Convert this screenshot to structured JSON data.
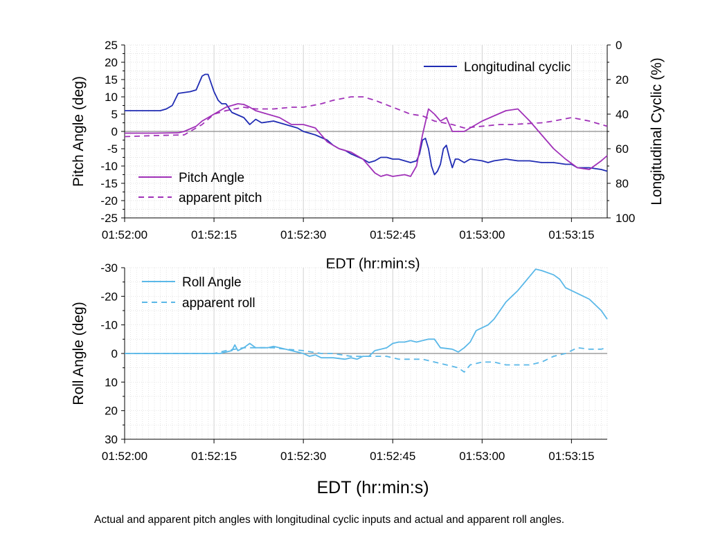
{
  "caption": "Actual and apparent pitch angles with longitudinal cyclic inputs and actual and apparent roll angles.",
  "chart_data": [
    {
      "type": "line",
      "xlabel": "EDT (hr:min:s)",
      "ylabel": "Pitch Angle (deg)",
      "y2label": "Longitudinal Cyclic (%)",
      "x_tick_labels": [
        "01:52:00",
        "01:52:15",
        "01:52:30",
        "01:52:45",
        "01:53:00",
        "01:53:15"
      ],
      "x_tick_seconds": [
        0,
        15,
        30,
        45,
        60,
        75
      ],
      "xlim_seconds": [
        0,
        81
      ],
      "ylim": [
        -25,
        25
      ],
      "y_ticks": [
        25,
        20,
        15,
        10,
        5,
        0,
        -5,
        -10,
        -15,
        -20,
        -25
      ],
      "y2lim": [
        0,
        100
      ],
      "y2_inverted": true,
      "y2_ticks": [
        0,
        20,
        40,
        60,
        80,
        100
      ],
      "grid": true,
      "series": [
        {
          "name": "Longitudinal cyclic",
          "axis": "right",
          "color": "#1f2bb3",
          "style": "solid",
          "legend_position": "top-right",
          "x": [
            0,
            3,
            6,
            7,
            8,
            9,
            11,
            12,
            13,
            13.5,
            14,
            15,
            15.7,
            16.3,
            17,
            18,
            20,
            21,
            22,
            23,
            25,
            27,
            29,
            30,
            31,
            32,
            34,
            35,
            36,
            37,
            38,
            40,
            41,
            42,
            43,
            44,
            45,
            46,
            47,
            48,
            49,
            49.5,
            50,
            50.5,
            51,
            51.5,
            52,
            52.5,
            53,
            53.5,
            54,
            54.5,
            55,
            55.5,
            56,
            57,
            58,
            60,
            61,
            62,
            64,
            66,
            68,
            70,
            72,
            74,
            75,
            76,
            78,
            80,
            81
          ],
          "y": [
            38,
            38,
            38,
            37,
            35,
            28,
            27,
            26,
            18,
            17,
            17,
            27,
            32,
            34,
            34,
            39,
            42,
            46,
            43,
            45,
            44,
            46,
            48,
            50,
            51,
            52,
            55,
            58,
            60,
            61,
            63,
            66,
            68,
            67,
            65,
            65,
            66,
            66,
            67,
            68,
            67,
            63,
            55,
            54,
            60,
            70,
            75,
            73,
            69,
            60,
            58,
            65,
            71,
            66,
            66,
            68,
            66,
            67,
            68,
            67,
            66,
            67,
            67,
            68,
            68,
            69,
            69,
            71,
            71,
            72,
            73
          ]
        },
        {
          "name": "Pitch Angle",
          "axis": "left",
          "color": "#a030b8",
          "style": "solid",
          "legend_position": "bottom-left",
          "x": [
            0,
            5,
            9,
            10,
            12,
            13,
            15,
            17,
            18,
            19,
            20,
            21,
            22,
            24,
            26,
            28,
            30,
            32,
            34,
            36,
            38,
            40,
            41,
            42,
            43,
            44,
            45,
            47,
            48,
            49,
            50,
            51,
            52,
            53,
            54,
            55,
            56,
            57,
            58,
            60,
            62,
            64,
            66,
            68,
            70,
            72,
            74,
            76,
            78,
            80,
            81
          ],
          "y": [
            -0.5,
            -0.5,
            -0.4,
            0,
            1.5,
            3,
            5,
            7,
            7.5,
            8,
            7.8,
            7,
            6,
            5,
            4,
            2,
            2,
            1,
            -3,
            -5,
            -6,
            -8,
            -10,
            -12,
            -13,
            -12.5,
            -13,
            -12.5,
            -13,
            -10,
            -1,
            6.5,
            5,
            3,
            4,
            0,
            0,
            0,
            1,
            3,
            4.5,
            6,
            6.5,
            3,
            -1,
            -5,
            -8,
            -10.5,
            -11,
            -8.5,
            -7
          ]
        },
        {
          "name": "apparent pitch",
          "axis": "left",
          "color": "#a030b8",
          "style": "dashed",
          "legend_position": "bottom-left",
          "x": [
            0,
            5,
            10,
            13,
            15,
            17,
            20,
            22,
            25,
            28,
            30,
            33,
            35,
            38,
            40,
            42,
            45,
            48,
            50,
            52,
            55,
            57,
            60,
            63,
            65,
            70,
            72,
            75,
            78,
            80,
            81
          ],
          "y": [
            -1.5,
            -1.2,
            -1,
            2,
            5,
            6,
            7,
            6.5,
            6.5,
            7,
            7,
            8,
            9,
            10,
            10,
            9,
            7,
            5,
            4.5,
            3,
            2,
            1,
            1.5,
            2,
            2,
            2.5,
            3,
            4,
            3,
            2,
            1.5
          ]
        }
      ]
    },
    {
      "type": "line",
      "xlabel": "EDT (hr:min:s)",
      "ylabel": "Roll Angle (deg)",
      "x_tick_labels": [
        "01:52:00",
        "01:52:15",
        "01:52:30",
        "01:52:45",
        "01:53:00",
        "01:53:15"
      ],
      "x_tick_seconds": [
        0,
        15,
        30,
        45,
        60,
        75
      ],
      "xlim_seconds": [
        0,
        81
      ],
      "ylim": [
        -30,
        30
      ],
      "y_inverted": true,
      "y_ticks": [
        -30,
        -20,
        -10,
        0,
        10,
        20,
        30
      ],
      "y_tick_labels": [
        "-30",
        "-20",
        "-10",
        "0",
        "10",
        "20",
        "30"
      ],
      "grid": true,
      "series": [
        {
          "name": "Roll Angle",
          "color": "#5ab8e8",
          "style": "solid",
          "legend_position": "top-left",
          "x": [
            0,
            5,
            10,
            15,
            16,
            18,
            18.5,
            19,
            20,
            21,
            22,
            24,
            25,
            26,
            27,
            28,
            30,
            31,
            32,
            33,
            35,
            37,
            38,
            39,
            40,
            41,
            42,
            44,
            45,
            46,
            47,
            48,
            49,
            51,
            52,
            53,
            55,
            56,
            57,
            58,
            59,
            60,
            61,
            62,
            64,
            65,
            66,
            68,
            69,
            70,
            72,
            73,
            74,
            76,
            78,
            80,
            81
          ],
          "y": [
            0,
            0,
            0,
            0,
            0,
            -1,
            -3,
            -1,
            -2,
            -3.5,
            -2,
            -2,
            -2.5,
            -2,
            -1.5,
            -1,
            0,
            1,
            0.5,
            1.5,
            1.5,
            2,
            1.5,
            2,
            1,
            1,
            -1,
            -2,
            -3.5,
            -4,
            -4,
            -4.5,
            -4,
            -5,
            -5,
            -2,
            -1.5,
            -0.5,
            -2,
            -4,
            -8,
            -9,
            -10,
            -12,
            -18,
            -20,
            -22,
            -27,
            -29.5,
            -29,
            -27.5,
            -26,
            -23,
            -21,
            -19,
            -15,
            -12
          ]
        },
        {
          "name": "apparent roll",
          "color": "#5ab8e8",
          "style": "dashed",
          "legend_position": "top-left",
          "x": [
            0,
            5,
            10,
            15,
            17,
            20,
            22,
            25,
            27,
            30,
            33,
            35,
            38,
            40,
            42,
            44,
            46,
            48,
            50,
            52,
            54,
            56,
            57,
            58,
            60,
            62,
            64,
            66,
            68,
            70,
            72,
            74,
            76,
            78,
            80,
            81
          ],
          "y": [
            0,
            0,
            0,
            0,
            -1,
            -2,
            -2,
            -2,
            -1.5,
            -1,
            0,
            0,
            1,
            1,
            1,
            1,
            2,
            2,
            2,
            3,
            4,
            5,
            6.5,
            4,
            3,
            3,
            4,
            4,
            4,
            3,
            1,
            0,
            -2,
            -1.5,
            -1.5,
            -2
          ]
        }
      ]
    }
  ]
}
